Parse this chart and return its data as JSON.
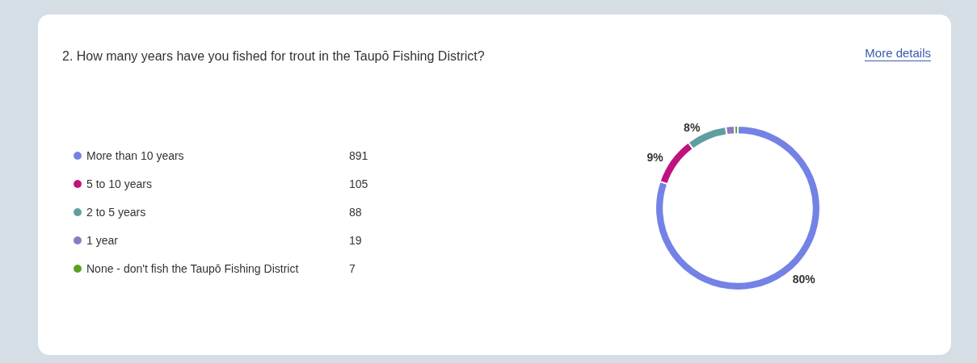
{
  "chart_data": {
    "type": "donut",
    "title": "2. How many years have you fished for trout in the Taupō Fishing District?",
    "categories": [
      "More than 10 years",
      "5 to 10 years",
      "2 to 5 years",
      "1 year",
      "None - don't fish the Taupō Fishing District"
    ],
    "values": [
      80.27,
      9.46,
      7.93,
      1.71,
      0.63
    ],
    "colors": [
      "#7482e6",
      "#c0127e",
      "#5f9ea0",
      "#8e79c4",
      "#5aa21e"
    ],
    "value_labels": [
      "80%",
      "9%",
      "8%",
      null,
      null
    ],
    "legend": "left",
    "annotations": [
      "More details",
      {
        "text": "891",
        "x": "More than 10 years"
      },
      {
        "text": "105",
        "x": "5 to 10 years"
      },
      {
        "text": "88",
        "x": "2 to 5 years"
      },
      {
        "text": "19",
        "x": "1 year"
      },
      {
        "text": "7",
        "x": "None - don't fish the Taupō Fishing District"
      }
    ]
  }
}
